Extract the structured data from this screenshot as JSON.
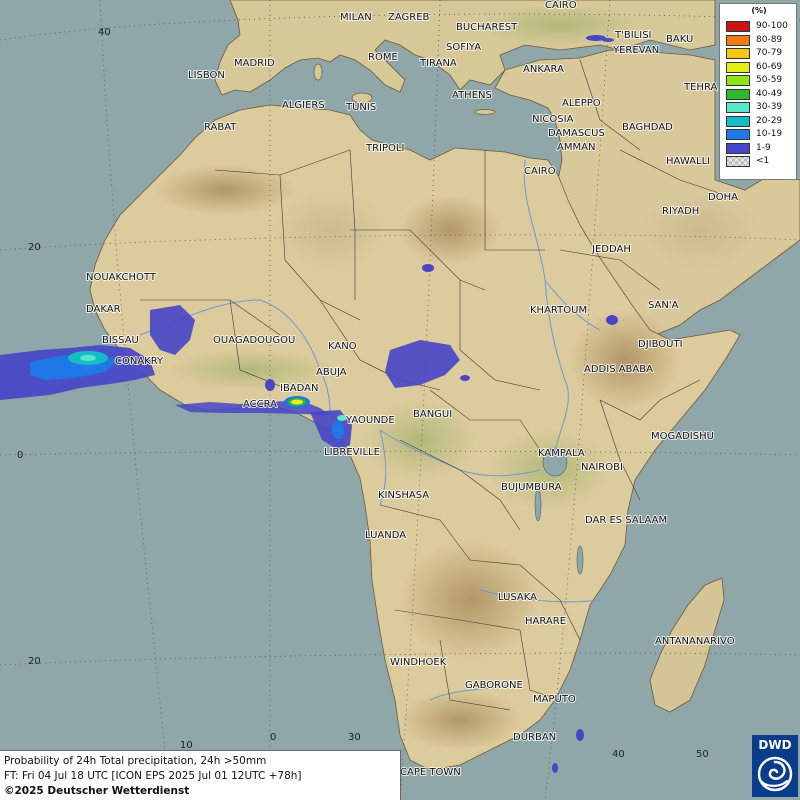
{
  "legend": {
    "title": "(%)",
    "items": [
      {
        "label": "90-100",
        "color": "#c81414"
      },
      {
        "label": "80-89",
        "color": "#f07a14"
      },
      {
        "label": "70-79",
        "color": "#f5c818"
      },
      {
        "label": "60-69",
        "color": "#e6f018"
      },
      {
        "label": "50-59",
        "color": "#8ee614"
      },
      {
        "label": "40-49",
        "color": "#2eb82e"
      },
      {
        "label": "30-39",
        "color": "#5ae6c8"
      },
      {
        "label": "20-29",
        "color": "#14bcc8"
      },
      {
        "label": "10-19",
        "color": "#1e78e6"
      },
      {
        "label": "1-9",
        "color": "#4646c8"
      },
      {
        "label": "<1",
        "color": "#c8c8c8"
      }
    ]
  },
  "info": {
    "line1": "Probability of 24h Total precipitation, 24h >50mm",
    "line2": "FT: Fri 04 Jul 18 UTC [ICON EPS 2025 Jul 01 12UTC +78h]",
    "copyright": "©2025 Deutscher Wetterdienst"
  },
  "logo": {
    "text": "DWD"
  },
  "grid_labels": {
    "lat_40": "40",
    "lat_20n": "20",
    "lat_0": "0",
    "lat_20s": "20",
    "lon_10": "10",
    "lon_0": "0",
    "lon_30": "30",
    "lon_40": "40",
    "lon_50": "50"
  },
  "cities": {
    "milan": "MILAN",
    "zagreb": "ZAGREB",
    "bucharest": "BUCHAREST",
    "cairo_top": "CAIRO",
    "tbilisi": "T'BILISI",
    "baku": "BAKU",
    "yerevan": "YEREVAN",
    "madrid": "MADRID",
    "rome": "ROME",
    "sofiya": "SOFIYA",
    "tirana": "TIRANA",
    "ankara": "ANKARA",
    "lisbon": "LISBON",
    "athens": "ATHENS",
    "tehran": "TEHRA",
    "algiers": "ALGIERS",
    "tunis": "TUNIS",
    "aleppo": "ALEPPO",
    "rabat": "RABAT",
    "nicosia": "NICOSIA",
    "baghdad": "BAGHDAD",
    "damascus": "DAMASCUS",
    "tripoli": "TRIPOLI",
    "amman": "AMMAN",
    "hawalli": "HAWALLI",
    "cairo": "CAIRO",
    "doha": "DOHA",
    "riyadh": "RIYADH",
    "jeddah": "JEDDAH",
    "nouakchott": "NOUAKCHOTT",
    "dakar": "DAKAR",
    "sanaa": "SAN'A",
    "khartoum": "KHARTOUM",
    "bissau": "BISSAU",
    "ouagadougou": "OUAGADOUGOU",
    "kano": "KANO",
    "djibouti": "DJIBOUTI",
    "conakry": "CONAKRY",
    "abuja": "ABUJA",
    "addis_ababa": "ADDIS ABABA",
    "ibadan": "IBADAN",
    "accra": "ACCRA",
    "yaounde": "YAOUNDE",
    "bangui": "BANGUI",
    "mogadishu": "MOGADISHU",
    "libreville": "LIBREVILLE",
    "kampala": "KAMPALA",
    "nairobi": "NAIROBI",
    "kinshasa": "KINSHASA",
    "bujumbura": "BUJUMBURA",
    "dar_es_salaam": "DAR ES SALAAM",
    "luanda": "LUANDA",
    "lusaka": "LUSAKA",
    "harare": "HARARE",
    "antananarivo": "ANTANANARIVO",
    "windhoek": "WINDHOEK",
    "gaborone": "GABORONE",
    "maputo": "MAPUTO",
    "durban": "DURBAN",
    "cape_town": "CAPE TOWN"
  }
}
